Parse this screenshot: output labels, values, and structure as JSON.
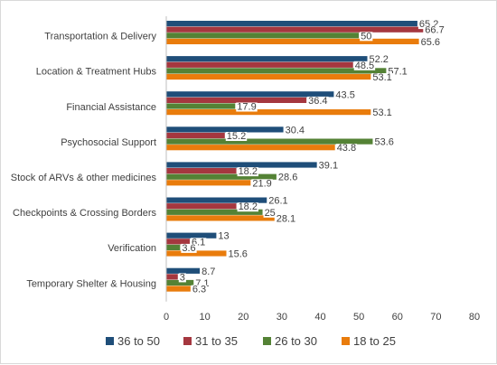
{
  "chart_data": {
    "type": "bar",
    "orientation": "horizontal",
    "categories": [
      "Transportation & Delivery",
      "Location & Treatment Hubs",
      "Financial Assistance",
      "Psychosocial Support",
      "Stock of ARVs & other medicines",
      "Checkpoints & Crossing Borders",
      "Verification",
      "Temporary Shelter & Housing"
    ],
    "series": [
      {
        "name": "36 to 50",
        "color": "#1f4e79",
        "values": [
          65.2,
          52.2,
          43.5,
          30.4,
          39.1,
          26.1,
          13,
          8.7
        ],
        "labels": [
          "65.2",
          "52.2",
          "43.5",
          "30.4",
          "39.1",
          "26.1",
          "13",
          "8.7"
        ]
      },
      {
        "name": "31 to 35",
        "color": "#a5373f",
        "values": [
          66.7,
          48.5,
          36.4,
          15.2,
          18.2,
          18.2,
          6.1,
          3
        ],
        "labels": [
          "66.7",
          "48.5",
          "36.4",
          "15.2",
          "18.2",
          "18.2",
          "6.1",
          "3"
        ]
      },
      {
        "name": "26 to 30",
        "color": "#548235",
        "values": [
          50,
          57.1,
          17.9,
          53.6,
          28.6,
          25,
          3.6,
          7.1
        ],
        "labels": [
          "50",
          "57.1",
          "17.9",
          "53.6",
          "28.6",
          "25",
          "3.6",
          "7.1"
        ]
      },
      {
        "name": "18 to 25",
        "color": "#e97c0c",
        "values": [
          65.6,
          53.1,
          53.1,
          43.8,
          21.9,
          28.1,
          15.6,
          6.3
        ],
        "labels": [
          "65.6",
          "53.1",
          "53.1",
          "43.8",
          "21.9",
          "28.1",
          "15.6",
          "6.3"
        ]
      }
    ],
    "xlim": [
      0,
      80
    ],
    "ticks": [
      "0",
      "10",
      "20",
      "30",
      "40",
      "50",
      "60",
      "70",
      "80"
    ],
    "title": "",
    "xlabel": "",
    "ylabel": "",
    "grid": false,
    "legend": "bottom"
  }
}
